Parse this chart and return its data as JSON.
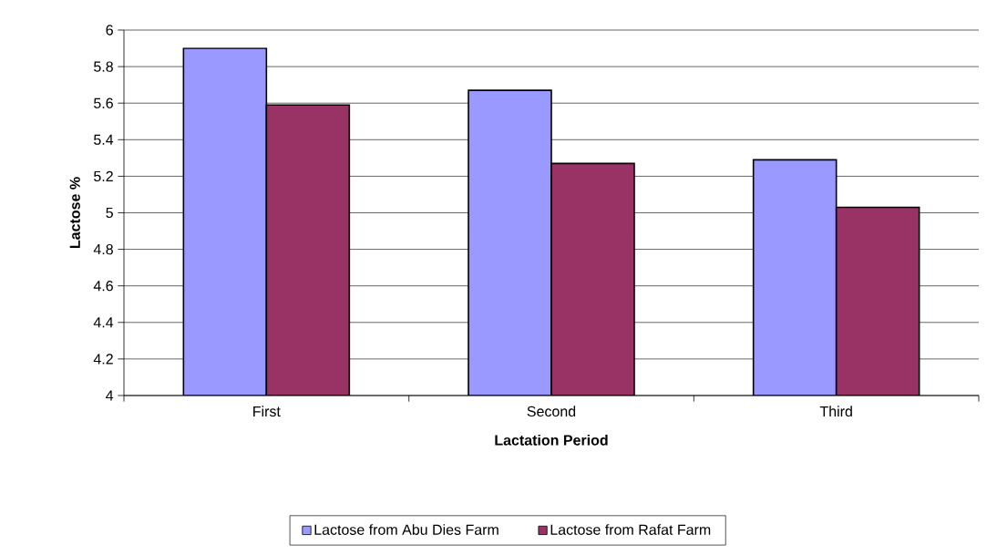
{
  "chart_data": {
    "type": "bar",
    "xlabel": "Lactation Period",
    "ylabel": "Lactose %",
    "categories": [
      "First",
      "Second",
      "Third"
    ],
    "series": [
      {
        "name": "Lactose from Abu Dies Farm",
        "color": "#9999ff",
        "values": [
          5.9,
          5.67,
          5.29
        ]
      },
      {
        "name": "Lactose from Rafat Farm",
        "color": "#993366",
        "values": [
          5.59,
          5.27,
          5.03
        ]
      }
    ],
    "ylim": [
      4,
      6
    ],
    "yticks": [
      4,
      4.2,
      4.4,
      4.6,
      4.8,
      5,
      5.2,
      5.4,
      5.6,
      5.8,
      6
    ],
    "grid": "y",
    "legend": "bottom"
  }
}
